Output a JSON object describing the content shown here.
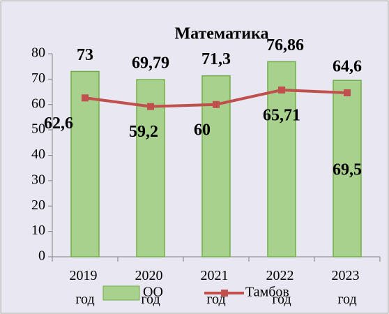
{
  "chart_data": {
    "type": "bar",
    "title": "Математика",
    "categories": [
      "2019 год",
      "2020 год",
      "2021 год",
      "2022 год",
      "2023 год"
    ],
    "series": [
      {
        "name": "ОО",
        "type": "bar",
        "color": "#a9d18e",
        "values": [
          73,
          69.79,
          71.3,
          76.86,
          69.5
        ],
        "value_labels": [
          "73",
          "69,79",
          "71,3",
          "76,86",
          "69,5"
        ]
      },
      {
        "name": "Тамбов",
        "type": "line",
        "color": "#c0504d",
        "values": [
          62.6,
          59.2,
          60,
          65.71,
          64.6
        ],
        "value_labels": [
          "62,6",
          "59,2",
          "60",
          "65,71",
          "64,6"
        ]
      }
    ],
    "ylim": [
      0,
      80
    ],
    "yticks": [
      0,
      10,
      20,
      30,
      40,
      50,
      60,
      70,
      80
    ],
    "legend": "bottom"
  }
}
